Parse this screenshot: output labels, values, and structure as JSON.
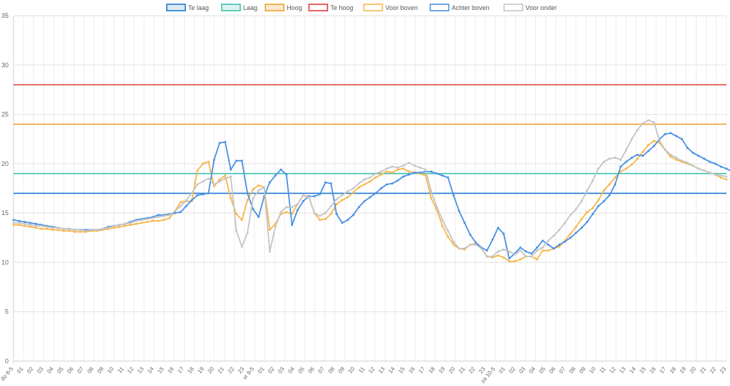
{
  "chart_data": {
    "type": "line",
    "title": "",
    "xlabel": "",
    "ylabel": "",
    "ylim": [
      0,
      35
    ],
    "yticks": [
      0,
      5,
      10,
      15,
      20,
      25,
      30,
      35
    ],
    "grid": true,
    "legend_position": "top-center",
    "x_tick_labels": [
      "do 8-5",
      "01",
      "02",
      "03",
      "04",
      "05",
      "06",
      "07",
      "08",
      "09",
      "10",
      "11",
      "12",
      "13",
      "14",
      "15",
      "16",
      "17",
      "18",
      "19",
      "20",
      "21",
      "22",
      "23",
      "vr 9-5",
      "01",
      "02",
      "03",
      "04",
      "05",
      "06",
      "07",
      "08",
      "09",
      "10",
      "11",
      "12",
      "13",
      "14",
      "15",
      "16",
      "17",
      "18",
      "19",
      "20",
      "21",
      "22",
      "23",
      "za 10-5",
      "01",
      "02",
      "03",
      "04",
      "05",
      "06",
      "07",
      "08",
      "09",
      "10",
      "11",
      "12",
      "13",
      "14",
      "15",
      "16",
      "17",
      "18",
      "19",
      "20",
      "21",
      "22",
      "23"
    ],
    "thresholds": [
      {
        "name": "Te laag",
        "value": 17,
        "color": "#1f77d4"
      },
      {
        "name": "Laag",
        "value": 19,
        "color": "#3dbfae"
      },
      {
        "name": "Hoog",
        "value": 24,
        "color": "#f0a030"
      },
      {
        "name": "Te hoog",
        "value": 28,
        "color": "#e03a3a"
      }
    ],
    "series": [
      {
        "name": "Voor boven",
        "color": "#f7b64a",
        "values": [
          13.8,
          13.8,
          13.7,
          13.6,
          13.5,
          13.4,
          13.4,
          13.3,
          13.3,
          13.2,
          13.2,
          13.1,
          13.1,
          13.1,
          13.2,
          13.2,
          13.3,
          13.4,
          13.5,
          13.6,
          13.7,
          13.8,
          13.9,
          14.0,
          14.1,
          14.2,
          14.2,
          14.3,
          14.5,
          15.2,
          16.1,
          16.2,
          16.2,
          19.3,
          20.0,
          20.2,
          17.7,
          18.4,
          18.8,
          16.5,
          14.9,
          14.3,
          16.3,
          17.4,
          17.8,
          17.6,
          13.3,
          13.9,
          14.9,
          15.1,
          14.9,
          15.9,
          16.8,
          16.7,
          15.0,
          14.3,
          14.4,
          14.9,
          15.9,
          16.3,
          16.6,
          17.1,
          17.6,
          17.9,
          18.2,
          18.6,
          18.9,
          19.2,
          19.1,
          19.4,
          19.5,
          19.2,
          19.1,
          19.0,
          18.8,
          16.5,
          15.3,
          13.7,
          12.6,
          11.8,
          11.4,
          11.3,
          11.8,
          11.9,
          11.4,
          10.6,
          10.5,
          10.7,
          10.5,
          10.1,
          10.1,
          10.3,
          10.6,
          10.6,
          10.3,
          11.2,
          11.2,
          11.4,
          11.6,
          12.2,
          12.9,
          13.6,
          14.4,
          15.1,
          15.5,
          16.3,
          17.3,
          17.9,
          18.6,
          19.2,
          19.5,
          19.9,
          20.5,
          21.2,
          21.9,
          22.3,
          22.1,
          21.4,
          20.7,
          20.4,
          20.2,
          20.0,
          19.8,
          19.5,
          19.3,
          19.1,
          18.9,
          18.6,
          18.4
        ]
      },
      {
        "name": "Achter boven",
        "color": "#4a90e2",
        "values": [
          14.3,
          14.2,
          14.1,
          14.0,
          13.9,
          13.8,
          13.7,
          13.6,
          13.5,
          13.4,
          13.4,
          13.3,
          13.3,
          13.3,
          13.3,
          13.3,
          13.4,
          13.6,
          13.7,
          13.8,
          13.9,
          14.1,
          14.3,
          14.4,
          14.5,
          14.6,
          14.8,
          14.8,
          14.9,
          15.0,
          15.1,
          15.7,
          16.3,
          16.8,
          16.9,
          17.0,
          20.4,
          22.1,
          22.2,
          19.4,
          20.3,
          20.3,
          17.0,
          15.4,
          14.6,
          16.7,
          18.1,
          18.8,
          19.4,
          18.9,
          13.8,
          15.3,
          16.2,
          16.7,
          16.7,
          16.9,
          18.1,
          18.0,
          14.9,
          14.0,
          14.3,
          14.8,
          15.6,
          16.2,
          16.6,
          17.0,
          17.5,
          17.9,
          18.0,
          18.3,
          18.7,
          18.9,
          19.1,
          19.1,
          19.2,
          19.2,
          19.0,
          18.8,
          18.6,
          16.8,
          15.2,
          14.0,
          12.8,
          12.0,
          11.5,
          11.2,
          12.3,
          13.5,
          12.9,
          10.4,
          10.9,
          11.5,
          11.1,
          10.9,
          11.5,
          12.2,
          11.8,
          11.4,
          11.8,
          12.1,
          12.5,
          13.0,
          13.5,
          14.1,
          14.9,
          15.7,
          16.2,
          16.8,
          17.9,
          19.7,
          20.2,
          20.6,
          20.9,
          20.8,
          21.3,
          21.8,
          22.5,
          23.0,
          23.1,
          22.8,
          22.5,
          21.6,
          21.1,
          20.8,
          20.5,
          20.2,
          20.0,
          19.7,
          19.5,
          19.2,
          19.1,
          18.9
        ]
      },
      {
        "name": "Voor onder",
        "color": "#c4c4c4",
        "values": [
          14.0,
          14.0,
          13.9,
          13.8,
          13.7,
          13.7,
          13.6,
          13.5,
          13.5,
          13.4,
          13.4,
          13.3,
          13.3,
          13.2,
          13.3,
          13.3,
          13.4,
          13.5,
          13.7,
          13.8,
          13.9,
          14.0,
          14.2,
          14.3,
          14.4,
          14.5,
          14.6,
          14.7,
          14.8,
          15.2,
          15.7,
          16.3,
          17.0,
          17.9,
          18.2,
          18.5,
          17.9,
          18.2,
          18.5,
          18.7,
          13.2,
          11.6,
          13.0,
          16.5,
          17.3,
          17.6,
          11.1,
          13.6,
          15.1,
          15.6,
          15.6,
          15.9,
          16.8,
          16.6,
          15.0,
          14.7,
          15.0,
          15.7,
          16.4,
          16.8,
          17.2,
          17.5,
          18.0,
          18.4,
          18.6,
          19.0,
          19.2,
          19.5,
          19.7,
          19.6,
          19.8,
          20.1,
          19.8,
          19.6,
          19.4,
          17.2,
          15.6,
          14.3,
          13.2,
          12.1,
          11.4,
          11.4,
          11.8,
          11.8,
          11.4,
          10.6,
          10.6,
          11.1,
          11.3,
          11.1,
          10.8,
          11.2,
          10.6,
          10.6,
          11.2,
          11.5,
          12.2,
          12.7,
          13.3,
          14.0,
          14.8,
          15.4,
          16.2,
          17.3,
          18.3,
          19.5,
          20.2,
          20.5,
          20.6,
          20.4,
          21.4,
          22.5,
          23.4,
          24.1,
          24.4,
          24.2,
          22.3,
          21.4,
          20.9,
          20.6,
          20.3,
          20.1,
          19.8,
          19.5,
          19.3,
          19.1,
          18.9,
          18.8,
          18.7
        ]
      }
    ]
  },
  "legend": [
    {
      "label": "Te laag",
      "stroke": "#1f77d4",
      "fill": "#dde8f5"
    },
    {
      "label": "Laag",
      "stroke": "#3dbfae",
      "fill": "#ddf2ef"
    },
    {
      "label": "Hoog",
      "stroke": "#f0a030",
      "fill": "#fbe9d0"
    },
    {
      "label": "Te hoog",
      "stroke": "#e03a3a",
      "fill": "#ffffff"
    },
    {
      "label": "Voor boven",
      "stroke": "#f7b64a",
      "fill": "#ffffff"
    },
    {
      "label": "Achter boven",
      "stroke": "#4a90e2",
      "fill": "#ffffff"
    },
    {
      "label": "Voor onder",
      "stroke": "#c4c4c4",
      "fill": "#ffffff"
    }
  ]
}
